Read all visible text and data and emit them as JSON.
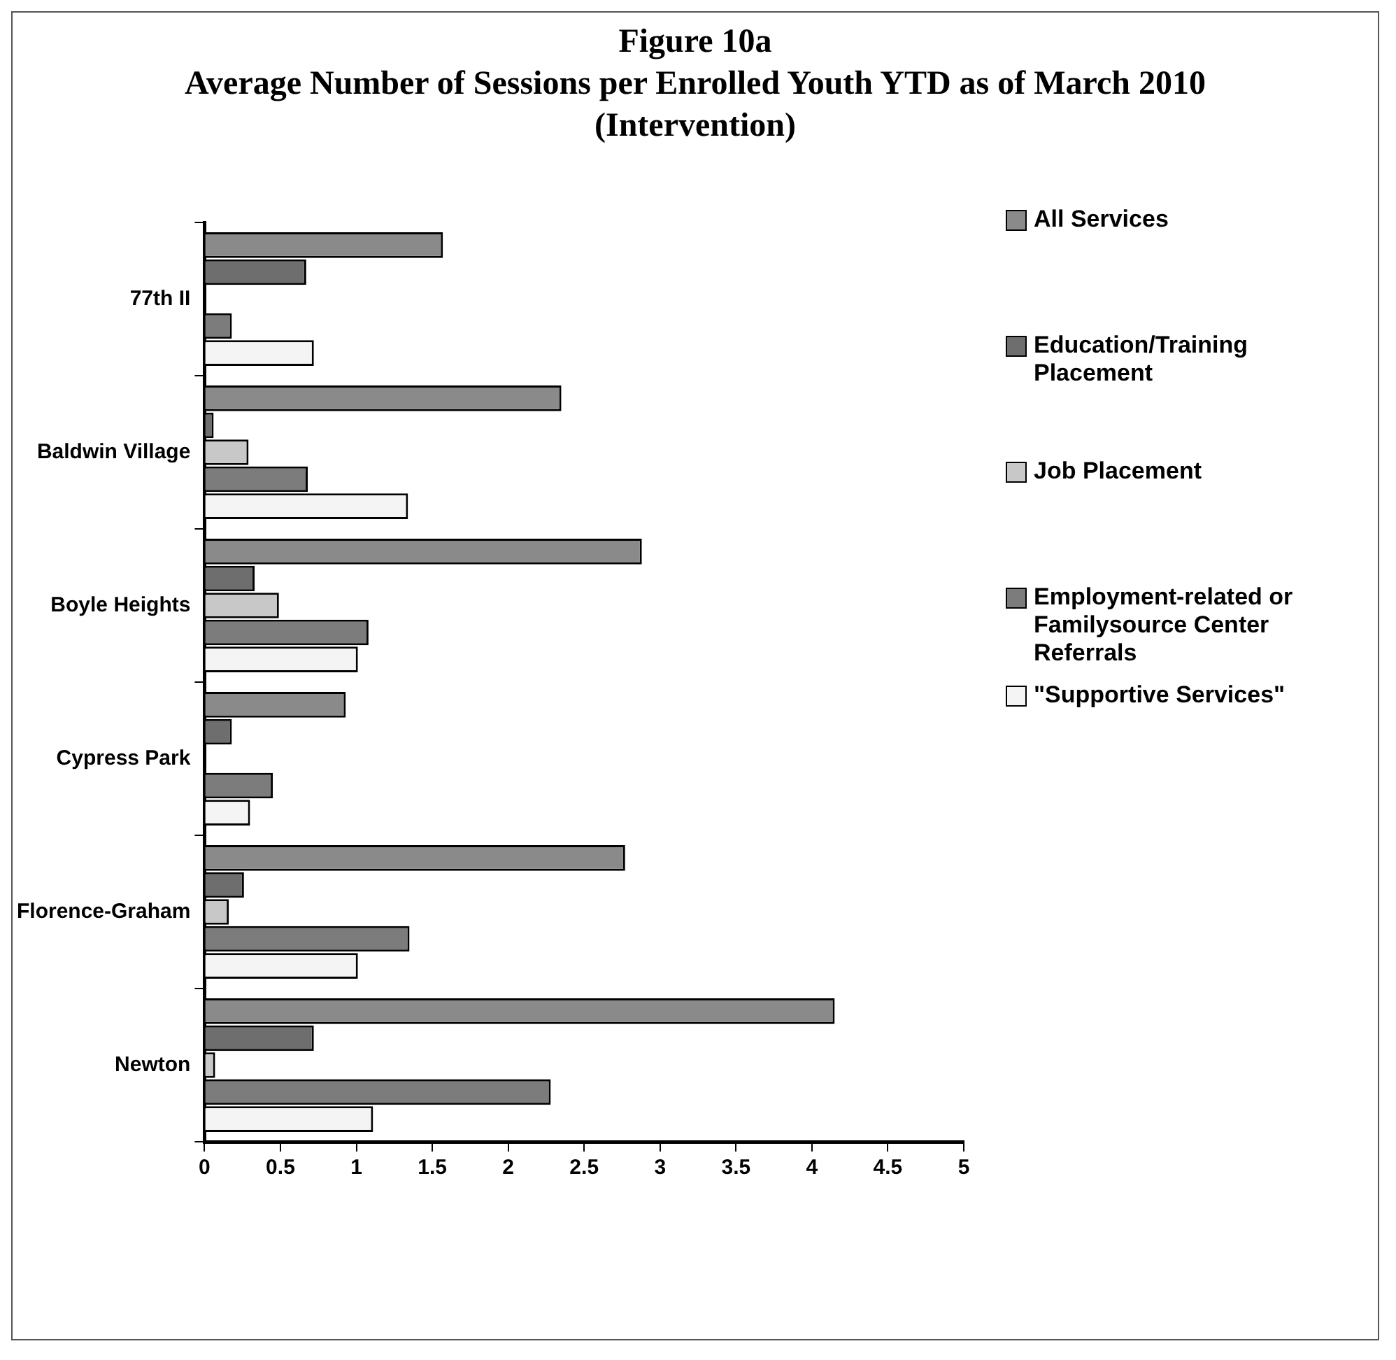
{
  "chart_data": {
    "type": "bar",
    "orientation": "horizontal",
    "title": "Figure 10a",
    "subtitle": "Average Number of Sessions per Enrolled Youth YTD as of March 2010 (Intervention)",
    "categories": [
      "77th II",
      "Baldwin Village",
      "Boyle Heights",
      "Cypress Park",
      "Florence-Graham",
      "Newton"
    ],
    "series": [
      {
        "name": "All Services",
        "color": "#8a8a8a",
        "values": [
          1.57,
          2.35,
          2.88,
          0.93,
          2.77,
          4.15
        ]
      },
      {
        "name": "Education/Training Placement",
        "color": "#6e6e6e",
        "values": [
          0.67,
          0.06,
          0.33,
          0.18,
          0.26,
          0.72
        ]
      },
      {
        "name": "Job Placement",
        "color": "#c8c8c8",
        "values": [
          null,
          0.29,
          0.49,
          null,
          0.16,
          0.07
        ]
      },
      {
        "name": "Employment-related or Familysource Center Referrals",
        "color": "#7c7c7c",
        "values": [
          0.18,
          0.68,
          1.08,
          0.45,
          1.35,
          2.28
        ]
      },
      {
        "name": "\"Supportive Services\"",
        "color": "#f4f4f4",
        "values": [
          0.72,
          1.34,
          1.01,
          0.3,
          1.01,
          1.11
        ]
      }
    ],
    "xlim": [
      0,
      5
    ],
    "xticks": [
      0,
      0.5,
      1,
      1.5,
      2,
      2.5,
      3,
      3.5,
      4,
      4.5,
      5
    ],
    "legend": "right"
  }
}
